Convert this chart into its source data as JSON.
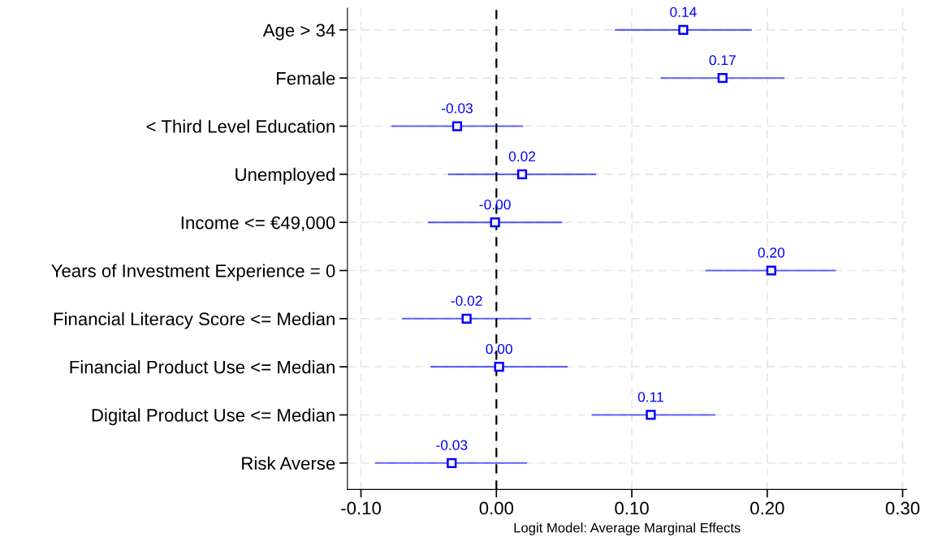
{
  "chart_data": {
    "type": "scatter",
    "orientation": "horizontal",
    "xlabel": "Logit Model: Average Marginal Effects",
    "categories": [
      "Age > 34",
      "Female",
      "< Third Level Education",
      "Unemployed",
      "Income <= €49,000",
      "Years of Investment Experience = 0",
      "Financial Literacy Score <= Median",
      "Financial Product Use <= Median",
      "Digital Product Use <= Median",
      "Risk Averse"
    ],
    "series": [
      {
        "color": "#0000ff",
        "values": [
          0.138,
          0.167,
          -0.029,
          0.019,
          -0.001,
          0.203,
          -0.022,
          0.002,
          0.114,
          -0.033
        ],
        "errors": [
          [
            0.088,
            0.188
          ],
          [
            0.122,
            0.212
          ],
          [
            -0.077,
            0.019
          ],
          [
            -0.035,
            0.073
          ],
          [
            -0.05,
            0.048
          ],
          [
            0.155,
            0.25
          ],
          [
            -0.069,
            0.025
          ],
          [
            -0.048,
            0.052
          ],
          [
            0.071,
            0.161
          ],
          [
            -0.089,
            0.022
          ]
        ],
        "value_labels": [
          "0.14",
          "0.17",
          "-0.03",
          "0.02",
          "-0.00",
          "0.20",
          "-0.02",
          "0.00",
          "0.11",
          "-0.03"
        ]
      }
    ],
    "xlim": [
      -0.11,
      0.303
    ],
    "xticks": [
      {
        "value": -0.1,
        "label": "-0.10"
      },
      {
        "value": 0,
        "label": "0.00"
      },
      {
        "value": 0.1,
        "label": "0.10"
      },
      {
        "value": 0.2,
        "label": "0.20"
      },
      {
        "value": 0.3,
        "label": "0.30"
      }
    ],
    "ref_lines": [
      {
        "axis": "x",
        "value": 0,
        "color": "#000000",
        "line_style": "dashed"
      }
    ],
    "grid": true,
    "marker": "square",
    "legend": false
  }
}
